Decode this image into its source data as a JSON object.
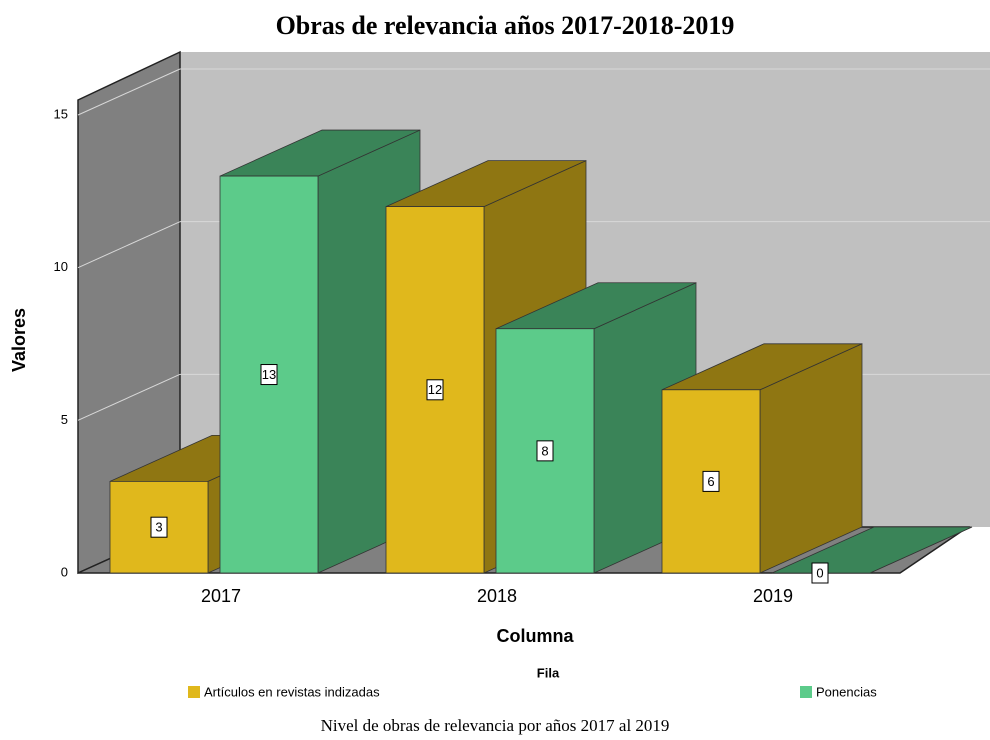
{
  "chart_data": {
    "type": "bar3d",
    "title": "Obras de relevancia años 2017-2018-2019",
    "x_label": "Columna",
    "y_label": "Valores",
    "legend_title": "Fila",
    "caption": "Nivel de obras de relevancia por años 2017 al 2019",
    "categories": [
      "2017",
      "2018",
      "2019"
    ],
    "series": [
      {
        "name": "Artículos en revistas indizadas",
        "color": "#e0b81c",
        "side_color": "#8f7612",
        "values": [
          3,
          12,
          6
        ]
      },
      {
        "name": "Ponencias",
        "color": "#5ccb8a",
        "side_color": "#3a8458",
        "values": [
          13,
          8,
          0
        ]
      }
    ],
    "ylim": [
      0,
      15
    ],
    "yticks": [
      0,
      5,
      10,
      15
    ],
    "grid": true
  }
}
